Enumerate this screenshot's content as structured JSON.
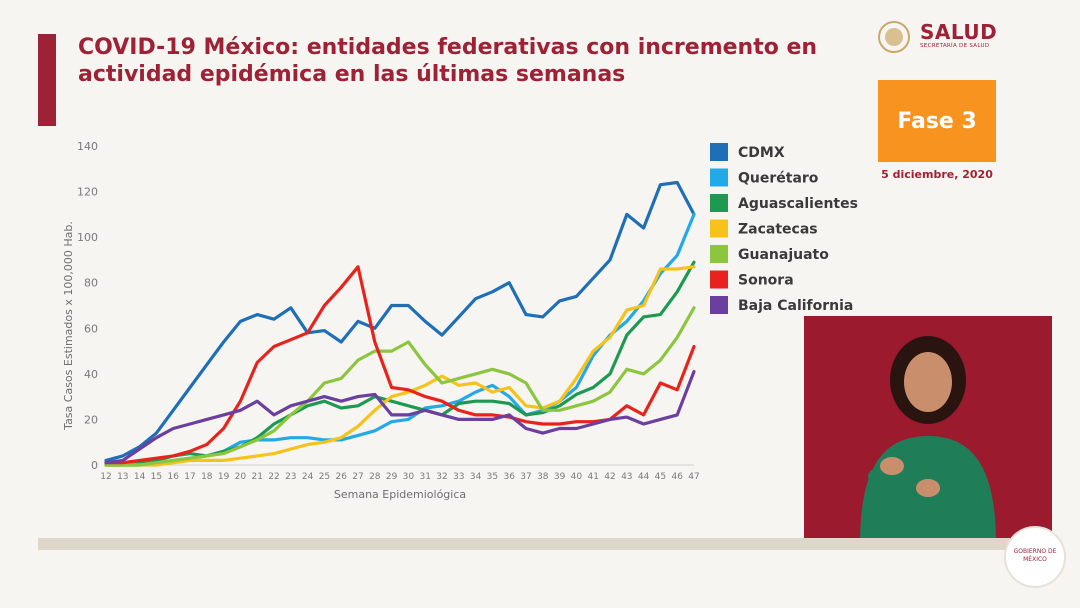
{
  "title": "COVID-19 México: entidades federativas con incremento en actividad epidémica en las últimas semanas",
  "logo": {
    "name": "SALUD",
    "subtitle": "SECRETARÍA DE SALUD"
  },
  "phase_label": "Fase 3",
  "date": "5 diciembre, 2020",
  "gob_label": "GOBIERNO DE MÉXICO",
  "colors": {
    "brand": "#9d2235",
    "phase": "#f7931e",
    "CDMX": "#1f6fb8",
    "Querétaro": "#23a9e8",
    "Aguascalientes": "#1d9a52",
    "Zacatecas": "#f7c21a",
    "Guanajuato": "#8cc63f",
    "Sonora": "#e8231d",
    "Baja California": "#6b3fa0"
  },
  "chart_data": {
    "type": "line",
    "xlabel": "Semana Epidemiológica",
    "ylabel": "Tasa Casos Estimados x 100,000 Hab.",
    "ylim": [
      0,
      140
    ],
    "yticks": [
      0,
      20,
      40,
      60,
      80,
      100,
      120,
      140
    ],
    "x": [
      12,
      13,
      14,
      15,
      16,
      17,
      18,
      19,
      20,
      21,
      22,
      23,
      24,
      25,
      26,
      27,
      28,
      29,
      30,
      31,
      32,
      33,
      34,
      35,
      36,
      37,
      38,
      39,
      40,
      41,
      42,
      43,
      44,
      45,
      46,
      47
    ],
    "legend_position": "right",
    "grid": false,
    "series": [
      {
        "name": "CDMX",
        "values": [
          2,
          4,
          8,
          14,
          24,
          34,
          44,
          54,
          63,
          66,
          64,
          69,
          58,
          59,
          54,
          63,
          60,
          70,
          70,
          63,
          57,
          65,
          73,
          76,
          80,
          66,
          65,
          72,
          74,
          82,
          90,
          110,
          104,
          123,
          124,
          110
        ]
      },
      {
        "name": "Querétaro",
        "values": [
          0,
          0,
          0,
          1,
          2,
          3,
          4,
          6,
          10,
          11,
          11,
          12,
          12,
          11,
          11,
          13,
          15,
          19,
          20,
          25,
          26,
          28,
          32,
          35,
          30,
          22,
          24,
          28,
          34,
          48,
          57,
          63,
          72,
          84,
          92,
          110
        ]
      },
      {
        "name": "Aguascalientes",
        "values": [
          0,
          0,
          1,
          2,
          4,
          5,
          4,
          6,
          8,
          12,
          18,
          22,
          26,
          28,
          25,
          26,
          30,
          28,
          26,
          24,
          22,
          27,
          28,
          28,
          27,
          22,
          23,
          26,
          31,
          34,
          40,
          57,
          65,
          66,
          76,
          89
        ]
      },
      {
        "name": "Zacatecas",
        "values": [
          0,
          0,
          0,
          0,
          1,
          2,
          2,
          2,
          3,
          4,
          5,
          7,
          9,
          10,
          12,
          17,
          24,
          30,
          32,
          35,
          39,
          35,
          36,
          32,
          34,
          26,
          25,
          28,
          38,
          50,
          56,
          68,
          70,
          86,
          86,
          87
        ]
      },
      {
        "name": "Guanajuato",
        "values": [
          0,
          0,
          0,
          1,
          2,
          3,
          4,
          5,
          8,
          11,
          15,
          22,
          28,
          36,
          38,
          46,
          50,
          50,
          54,
          44,
          36,
          38,
          40,
          42,
          40,
          36,
          24,
          24,
          26,
          28,
          32,
          42,
          40,
          46,
          56,
          69
        ]
      },
      {
        "name": "Sonora",
        "values": [
          1,
          1,
          2,
          3,
          4,
          6,
          9,
          16,
          28,
          45,
          52,
          55,
          58,
          70,
          78,
          87,
          54,
          34,
          33,
          30,
          28,
          24,
          22,
          22,
          21,
          19,
          18,
          18,
          19,
          19,
          20,
          26,
          22,
          36,
          33,
          52
        ]
      },
      {
        "name": "Baja California",
        "values": [
          1,
          2,
          7,
          12,
          16,
          18,
          20,
          22,
          24,
          28,
          22,
          26,
          28,
          30,
          28,
          30,
          31,
          22,
          22,
          24,
          22,
          20,
          20,
          20,
          22,
          16,
          14,
          16,
          16,
          18,
          20,
          21,
          18,
          20,
          22,
          41
        ]
      }
    ]
  }
}
